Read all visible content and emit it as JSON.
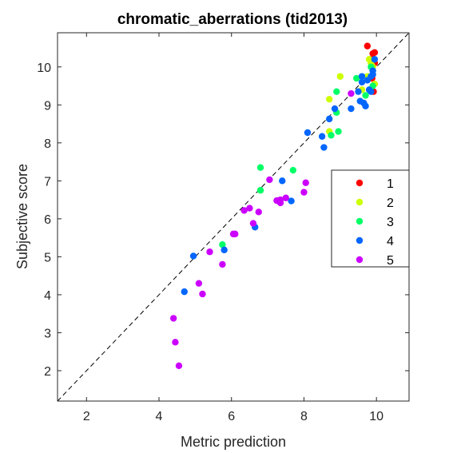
{
  "chart_data": {
    "type": "scatter",
    "title": "chromatic_aberrations (tid2013)",
    "xlabel": "Metric prediction",
    "ylabel": "Subjective score",
    "xlim": [
      1.2,
      10.9
    ],
    "ylim": [
      1.2,
      10.9
    ],
    "xticks": [
      2,
      4,
      6,
      8,
      10
    ],
    "yticks": [
      2,
      3,
      4,
      5,
      6,
      7,
      8,
      9,
      10
    ],
    "grid": false,
    "reference_line": "diagonal-dashed",
    "legend_position": "right",
    "series": [
      {
        "name": "1",
        "color": "#ff0000",
        "points": [
          [
            9.75,
            10.55
          ],
          [
            9.9,
            10.35
          ],
          [
            9.95,
            10.38
          ],
          [
            9.85,
            10.2
          ],
          [
            9.95,
            10.1
          ],
          [
            9.92,
            9.35
          ],
          [
            9.88,
            9.7
          ]
        ]
      },
      {
        "name": "2",
        "color": "#ccff00",
        "points": [
          [
            9.0,
            9.75
          ],
          [
            8.7,
            9.15
          ],
          [
            8.7,
            8.3
          ],
          [
            9.75,
            9.75
          ],
          [
            9.85,
            10.1
          ],
          [
            9.9,
            9.9
          ],
          [
            9.95,
            9.55
          ],
          [
            9.9,
            10.0
          ],
          [
            9.6,
            9.4
          ],
          [
            9.8,
            10.2
          ]
        ]
      },
      {
        "name": "3",
        "color": "#00ff66",
        "points": [
          [
            6.8,
            7.35
          ],
          [
            7.7,
            7.28
          ],
          [
            6.8,
            6.75
          ],
          [
            5.75,
            5.32
          ],
          [
            8.95,
            8.3
          ],
          [
            8.75,
            8.2
          ],
          [
            8.9,
            8.8
          ],
          [
            8.9,
            9.35
          ],
          [
            9.45,
            9.7
          ],
          [
            9.7,
            9.25
          ],
          [
            9.9,
            9.5
          ],
          [
            9.85,
            10.0
          ]
        ]
      },
      {
        "name": "4",
        "color": "#0066ff",
        "points": [
          [
            4.95,
            5.02
          ],
          [
            4.7,
            4.08
          ],
          [
            5.8,
            5.18
          ],
          [
            6.65,
            5.78
          ],
          [
            7.65,
            6.47
          ],
          [
            7.4,
            7.0
          ],
          [
            8.1,
            8.27
          ],
          [
            8.5,
            8.17
          ],
          [
            8.55,
            7.88
          ],
          [
            8.7,
            8.63
          ],
          [
            8.85,
            8.9
          ],
          [
            9.3,
            8.9
          ],
          [
            9.5,
            9.35
          ],
          [
            9.55,
            9.1
          ],
          [
            9.6,
            9.6
          ],
          [
            9.65,
            9.05
          ],
          [
            9.7,
            8.97
          ],
          [
            9.8,
            9.4
          ],
          [
            9.85,
            9.75
          ],
          [
            9.9,
            9.9
          ],
          [
            9.95,
            10.2
          ],
          [
            9.75,
            9.65
          ],
          [
            9.6,
            9.75
          ],
          [
            9.9,
            9.8
          ],
          [
            9.85,
            9.35
          ]
        ]
      },
      {
        "name": "5",
        "color": "#cc00ff",
        "points": [
          [
            4.4,
            3.38
          ],
          [
            4.45,
            2.75
          ],
          [
            4.55,
            2.13
          ],
          [
            5.1,
            4.3
          ],
          [
            5.2,
            4.02
          ],
          [
            5.4,
            5.13
          ],
          [
            5.75,
            4.8
          ],
          [
            6.05,
            5.6
          ],
          [
            6.1,
            5.6
          ],
          [
            6.35,
            6.22
          ],
          [
            6.5,
            6.28
          ],
          [
            6.6,
            5.88
          ],
          [
            6.75,
            6.18
          ],
          [
            7.05,
            7.03
          ],
          [
            7.25,
            6.48
          ],
          [
            7.35,
            6.5
          ],
          [
            7.35,
            6.42
          ],
          [
            7.5,
            6.55
          ],
          [
            8.0,
            6.7
          ],
          [
            8.05,
            6.95
          ],
          [
            9.3,
            9.3
          ]
        ]
      }
    ]
  }
}
